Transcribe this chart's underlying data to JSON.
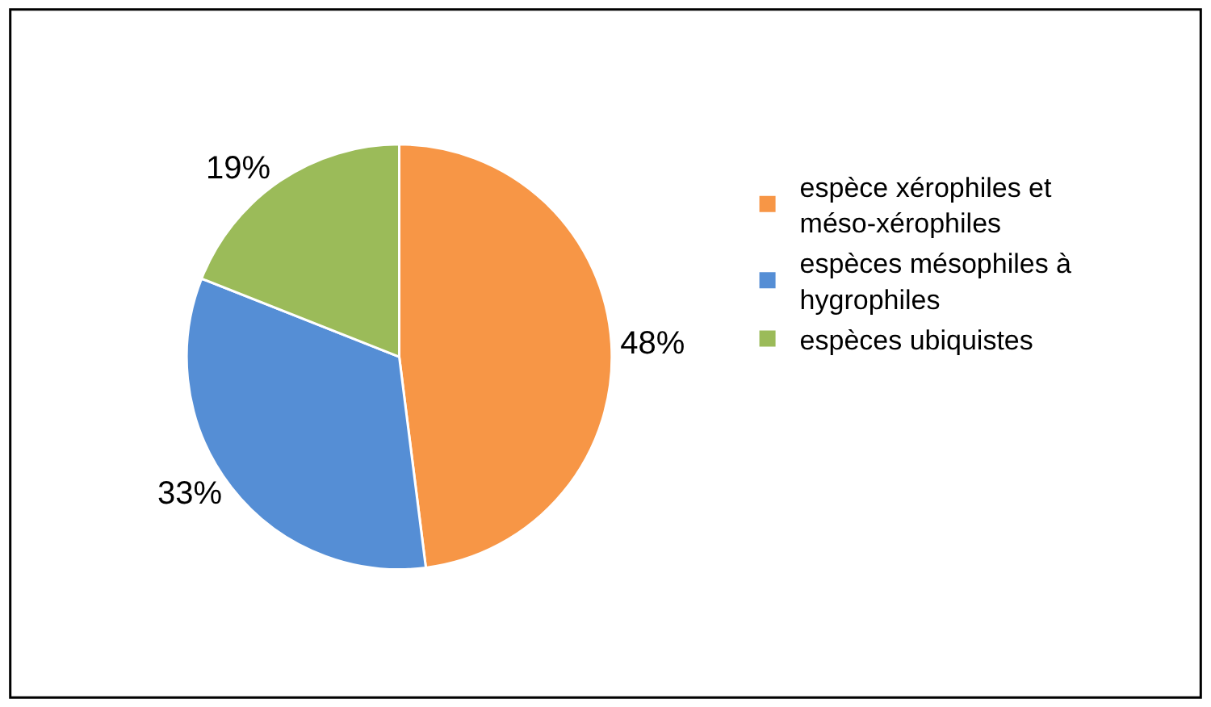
{
  "chart_data": {
    "type": "pie",
    "categories": [
      "espèce xérophiles et méso-xérophiles",
      "espèces mésophiles à hygrophiles",
      "espèces ubiquistes"
    ],
    "values": [
      48,
      33,
      19
    ],
    "value_labels": [
      "48%",
      "33%",
      "19%"
    ],
    "colors": [
      "#f79646",
      "#558ed5",
      "#9bbb59"
    ],
    "legend": "right"
  }
}
